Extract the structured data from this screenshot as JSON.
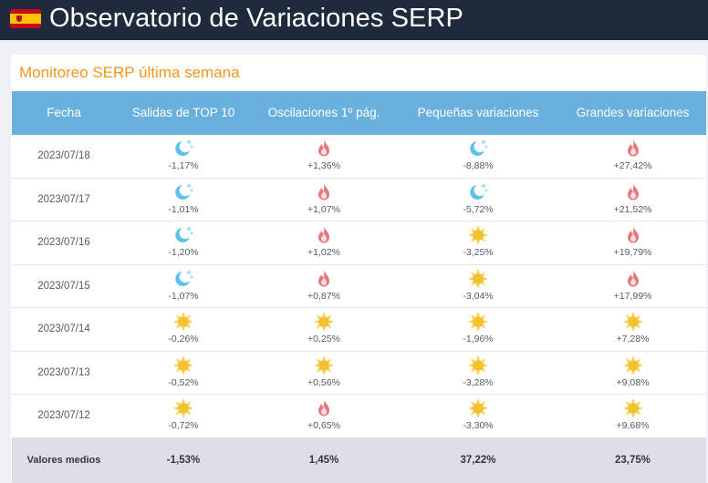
{
  "header": {
    "title": "Observatorio de Variaciones SERP",
    "flag_icon": "spain-flag-icon"
  },
  "card": {
    "title": "Monitoreo SERP última semana",
    "columns": [
      "Fecha",
      "Salidas de TOP 10",
      "Oscilaciones 1º pág.",
      "Pequeñas variaciones",
      "Grandes variaciones"
    ],
    "rows": [
      {
        "date": "2023/07/18",
        "cells": [
          {
            "icon": "moon",
            "value": "-1,17%"
          },
          {
            "icon": "flame",
            "value": "+1,36%"
          },
          {
            "icon": "moon",
            "value": "-8,88%"
          },
          {
            "icon": "flame",
            "value": "+27,42%"
          }
        ]
      },
      {
        "date": "2023/07/17",
        "cells": [
          {
            "icon": "moon",
            "value": "-1,01%"
          },
          {
            "icon": "flame",
            "value": "+1,07%"
          },
          {
            "icon": "moon",
            "value": "-5,72%"
          },
          {
            "icon": "flame",
            "value": "+21,52%"
          }
        ]
      },
      {
        "date": "2023/07/16",
        "cells": [
          {
            "icon": "moon",
            "value": "-1,20%"
          },
          {
            "icon": "flame",
            "value": "+1,02%"
          },
          {
            "icon": "sun",
            "value": "-3,25%"
          },
          {
            "icon": "flame",
            "value": "+19,79%"
          }
        ]
      },
      {
        "date": "2023/07/15",
        "cells": [
          {
            "icon": "moon",
            "value": "-1,07%"
          },
          {
            "icon": "flame",
            "value": "+0,87%"
          },
          {
            "icon": "sun",
            "value": "-3,04%"
          },
          {
            "icon": "flame",
            "value": "+17,99%"
          }
        ]
      },
      {
        "date": "2023/07/14",
        "cells": [
          {
            "icon": "sun",
            "value": "-0,26%"
          },
          {
            "icon": "sun",
            "value": "+0,25%"
          },
          {
            "icon": "sun",
            "value": "-1,96%"
          },
          {
            "icon": "sun",
            "value": "+7,28%"
          }
        ]
      },
      {
        "date": "2023/07/13",
        "cells": [
          {
            "icon": "sun",
            "value": "-0,52%"
          },
          {
            "icon": "sun",
            "value": "+0,56%"
          },
          {
            "icon": "sun",
            "value": "-3,28%"
          },
          {
            "icon": "sun",
            "value": "+9,08%"
          }
        ]
      },
      {
        "date": "2023/07/12",
        "cells": [
          {
            "icon": "sun",
            "value": "-0,72%"
          },
          {
            "icon": "flame",
            "value": "+0,65%"
          },
          {
            "icon": "sun",
            "value": "-3,30%"
          },
          {
            "icon": "sun",
            "value": "+9,68%"
          }
        ]
      }
    ],
    "footer": {
      "label": "Valores medios",
      "values": [
        "-1,53%",
        "1,45%",
        "37,22%",
        "23,75%"
      ]
    }
  },
  "colors": {
    "header_bg": "#1f2a3c",
    "accent": "#f7941d",
    "table_header": "#6ab0dd",
    "footer_bg": "#dcdfe5"
  }
}
